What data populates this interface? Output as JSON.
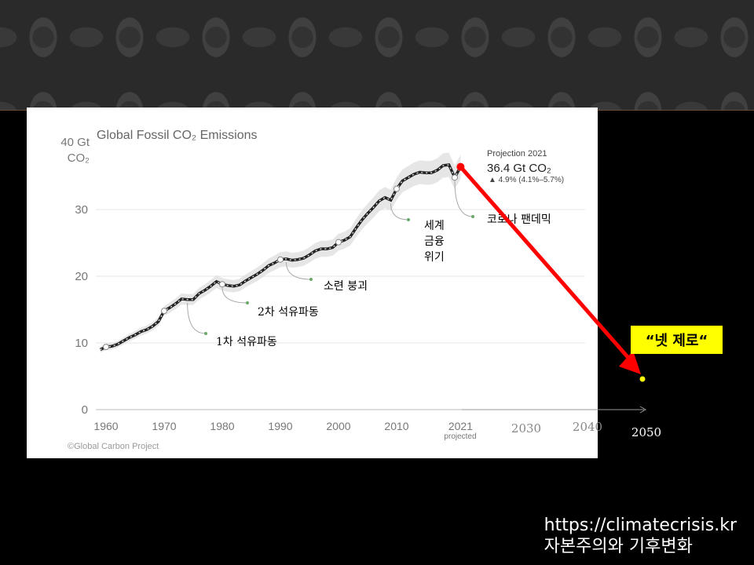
{
  "chart_data": {
    "type": "line",
    "title": "Global Fossil CO₂ Emissions",
    "ylabel": [
      "40 Gt",
      "CO₂"
    ],
    "ylim": [
      0,
      40
    ],
    "yticks": [
      "0",
      "10",
      "20",
      "30"
    ],
    "xticks": [
      "1960",
      "1970",
      "1980",
      "1990",
      "2000",
      "2010",
      "2021"
    ],
    "xtick_sub": "projected",
    "extended_xticks": [
      "2030",
      "2040",
      "2050"
    ],
    "series": [
      {
        "x": [
          1959,
          1960,
          1961,
          1962,
          1963,
          1964,
          1965,
          1966,
          1967,
          1968,
          1969,
          1970,
          1971,
          1972,
          1973,
          1974,
          1975,
          1976,
          1977,
          1978,
          1979,
          1980,
          1981,
          1982,
          1983,
          1984,
          1985,
          1986,
          1987,
          1988,
          1989,
          1990,
          1991,
          1992,
          1993,
          1994,
          1995,
          1996,
          1997,
          1998,
          1999,
          2000,
          2001,
          2002,
          2003,
          2004,
          2005,
          2006,
          2007,
          2008,
          2009,
          2010,
          2011,
          2012,
          2013,
          2014,
          2015,
          2016,
          2017,
          2018,
          2019,
          2020,
          2021
        ],
        "y": [
          9.0,
          9.4,
          9.5,
          9.8,
          10.3,
          10.8,
          11.2,
          11.7,
          12.0,
          12.5,
          13.2,
          14.8,
          15.3,
          15.9,
          16.6,
          16.5,
          16.5,
          17.4,
          17.9,
          18.5,
          19.2,
          18.8,
          18.6,
          18.5,
          18.7,
          19.3,
          19.8,
          20.3,
          20.9,
          21.6,
          22.0,
          22.5,
          22.6,
          22.4,
          22.5,
          22.7,
          23.2,
          23.8,
          24.1,
          24.1,
          24.3,
          25.1,
          25.4,
          25.9,
          27.2,
          28.4,
          29.4,
          30.3,
          31.3,
          31.8,
          31.4,
          33.1,
          34.3,
          34.8,
          35.3,
          35.6,
          35.5,
          35.5,
          35.9,
          36.6,
          36.7,
          34.8,
          36.4
        ]
      }
    ],
    "projection_label": "Projection 2021",
    "projection_value": "36.4 Gt CO₂",
    "projection_range": "▲ 4.9% (4.1%–5.7%)",
    "target": {
      "x": 2050,
      "y": 5,
      "label": "“넷 제로“"
    },
    "annotations": [
      {
        "text": "1차 석유파동",
        "x": 1974
      },
      {
        "text": "2차 석유파동",
        "x": 1980
      },
      {
        "text": "소련 붕괴",
        "x": 1991
      },
      {
        "text": [
          "세계",
          "금융",
          "위기"
        ],
        "x": 2009
      },
      {
        "text": "코로나 팬데믹",
        "x": 2020
      }
    ],
    "credit": "©Global Carbon Project"
  },
  "footer": {
    "url": "https://climatecrisis.kr",
    "book": "자본주의와 기후변화"
  },
  "colors": {
    "line": "#222222",
    "band": "#dcdcdc",
    "arrow": "#ff0000",
    "target_dot": "#ffff00",
    "leader": "#6aa86a"
  }
}
